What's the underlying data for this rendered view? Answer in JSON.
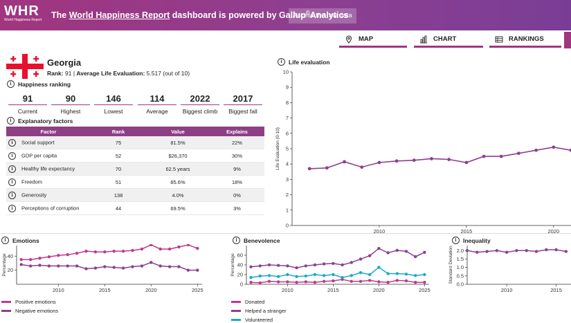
{
  "header": {
    "logo_mark": "WHR",
    "logo_sub": "World Happiness Report",
    "message_prefix": "The ",
    "message_link": "World Happiness Report",
    "message_middle": " dashboard is powered by Gallup",
    "message_sup": "©",
    "message_suffix": "Analytics",
    "raw_data_button": "Access the raw data"
  },
  "tabs": [
    {
      "label": "MAP",
      "icon": "map-pin-icon"
    },
    {
      "label": "CHART",
      "icon": "bar-chart-icon"
    },
    {
      "label": "RANKINGS",
      "icon": "table-icon"
    }
  ],
  "country": {
    "name": "Georgia",
    "rank_label": "Rank:",
    "rank_value": "91",
    "avg_label": "Average Life Evaluation:",
    "avg_value": "5.517 (out of 10)"
  },
  "happiness_ranking": {
    "title": "Happiness ranking",
    "stats": [
      {
        "value": "91",
        "label": "Current"
      },
      {
        "value": "90",
        "label": "Highest"
      },
      {
        "value": "146",
        "label": "Lowest"
      },
      {
        "value": "114",
        "label": "Average"
      },
      {
        "value": "2022",
        "label": "Biggest climb"
      },
      {
        "value": "2017",
        "label": "Biggest fall"
      }
    ]
  },
  "explanatory": {
    "title": "Explanatory factors",
    "columns": [
      "Factor",
      "Rank",
      "Value",
      "Explains"
    ],
    "rows": [
      {
        "factor": "Social support",
        "rank": "75",
        "value": "81.5%",
        "explains": "22%"
      },
      {
        "factor": "GDP per capita",
        "rank": "52",
        "value": "$26,370",
        "explains": "30%"
      },
      {
        "factor": "Healthy life expectancy",
        "rank": "70",
        "value": "62.5 years",
        "explains": "9%"
      },
      {
        "factor": "Freedom",
        "rank": "51",
        "value": "85.6%",
        "explains": "18%"
      },
      {
        "factor": "Generosity",
        "rank": "138",
        "value": "4.0%",
        "explains": "0%"
      },
      {
        "factor": "Perceptions of corruption",
        "rank": "44",
        "value": "69.5%",
        "explains": "3%"
      }
    ]
  },
  "colors": {
    "accent": "#a1357f",
    "purple_line": "#8d3f90",
    "pink_line": "#c2388a",
    "cyan_line": "#1aa9c9"
  },
  "chart_data": [
    {
      "id": "life",
      "type": "line",
      "title": "Life evaluation",
      "ylabel": "Life Evaluation (0-10)",
      "xlabel": "",
      "ylim": [
        0,
        10
      ],
      "yticks": [
        0,
        1,
        2,
        3,
        4,
        5,
        6,
        7,
        8,
        9,
        10
      ],
      "xlim": [
        2005,
        2021
      ],
      "xticks": [
        2010,
        2015,
        2020
      ],
      "series": [
        {
          "name": "Life evaluation",
          "color": "#8d3f90",
          "x": [
            2006,
            2007,
            2008,
            2009,
            2010,
            2011,
            2012,
            2013,
            2014,
            2015,
            2016,
            2017,
            2018,
            2019,
            2020,
            2021
          ],
          "y": [
            3.7,
            3.75,
            4.15,
            3.8,
            4.1,
            4.2,
            4.25,
            4.35,
            4.3,
            4.1,
            4.5,
            4.5,
            4.7,
            4.9,
            5.1,
            4.9
          ]
        }
      ]
    },
    {
      "id": "emotions",
      "type": "line",
      "title": "Emotions",
      "ylabel": "Percentage",
      "ylim": [
        0,
        55
      ],
      "yticks": [
        20,
        40
      ],
      "xlim": [
        2005.5,
        2025.5
      ],
      "xticks": [
        2010,
        2015,
        2020,
        2025
      ],
      "series": [
        {
          "name": "Positive emotions",
          "color": "#c2388a",
          "x": [
            2006,
            2007,
            2008,
            2009,
            2010,
            2011,
            2012,
            2013,
            2014,
            2015,
            2016,
            2017,
            2018,
            2019,
            2020,
            2021,
            2022,
            2023,
            2024,
            2025
          ],
          "y": [
            35,
            35,
            37,
            39,
            41,
            42,
            44,
            47,
            46,
            46,
            47,
            47,
            48,
            50,
            56,
            50,
            50,
            53,
            56,
            51
          ]
        },
        {
          "name": "Negative emotions",
          "color": "#8d3f90",
          "x": [
            2006,
            2007,
            2008,
            2009,
            2010,
            2011,
            2012,
            2013,
            2014,
            2015,
            2016,
            2017,
            2018,
            2019,
            2020,
            2021,
            2022,
            2023,
            2024,
            2025
          ],
          "y": [
            28,
            26,
            27,
            26,
            26,
            26,
            26,
            22,
            23,
            25,
            24,
            23,
            25,
            26,
            31,
            26,
            25,
            25,
            20,
            20
          ]
        }
      ]
    },
    {
      "id": "benevolence",
      "type": "line",
      "title": "Benevolence",
      "ylabel": "Percentage",
      "ylim": [
        0,
        80
      ],
      "yticks": [
        0,
        20,
        40,
        60
      ],
      "xlim": [
        2005.5,
        2025.5
      ],
      "xticks": [
        2010,
        2015,
        2020,
        2025
      ],
      "series": [
        {
          "name": "Donated",
          "color": "#c2388a",
          "x": [
            2006,
            2007,
            2008,
            2009,
            2010,
            2011,
            2012,
            2013,
            2014,
            2015,
            2016,
            2017,
            2018,
            2019,
            2020,
            2021,
            2022,
            2023,
            2024,
            2025
          ],
          "y": [
            4,
            3,
            6,
            5,
            5,
            4,
            5,
            4,
            6,
            7,
            10,
            6,
            6,
            8,
            5,
            4,
            8,
            7,
            4,
            4
          ]
        },
        {
          "name": "Helped a stranger",
          "color": "#8d3f90",
          "x": [
            2006,
            2007,
            2008,
            2009,
            2010,
            2011,
            2012,
            2013,
            2014,
            2015,
            2016,
            2017,
            2018,
            2019,
            2020,
            2021,
            2022,
            2023,
            2024,
            2025
          ],
          "y": [
            36,
            38,
            40,
            39,
            38,
            34,
            38,
            40,
            42,
            43,
            40,
            45,
            52,
            59,
            74,
            65,
            70,
            68,
            57,
            66
          ]
        },
        {
          "name": "Volunteered",
          "color": "#1aa9c9",
          "x": [
            2006,
            2007,
            2008,
            2009,
            2010,
            2011,
            2012,
            2013,
            2014,
            2015,
            2016,
            2017,
            2018,
            2019,
            2020,
            2021,
            2022,
            2023,
            2024,
            2025
          ],
          "y": [
            14,
            17,
            18,
            16,
            20,
            16,
            17,
            20,
            18,
            20,
            14,
            18,
            24,
            20,
            35,
            22,
            22,
            21,
            18,
            20
          ]
        }
      ]
    },
    {
      "id": "inequality",
      "type": "line",
      "title": "Inequality",
      "ylabel": "Standard Deviation",
      "ylim": [
        0,
        2.3
      ],
      "yticks": [
        0,
        0.5,
        1.0,
        1.5,
        2.0
      ],
      "ytick_labels": [
        "0.0",
        "0.5",
        "1.0",
        "1.5",
        "2.0"
      ],
      "xlim": [
        2006,
        2016.5
      ],
      "xticks": [
        2010,
        2015
      ],
      "series": [
        {
          "name": "Inequality",
          "color": "#8d3f90",
          "x": [
            2006,
            2007,
            2008,
            2009,
            2010,
            2011,
            2012,
            2013,
            2014,
            2015,
            2016
          ],
          "y": [
            2.0,
            1.9,
            1.95,
            2.0,
            1.9,
            2.0,
            2.0,
            1.95,
            2.05,
            2.05,
            1.95
          ]
        }
      ]
    }
  ]
}
